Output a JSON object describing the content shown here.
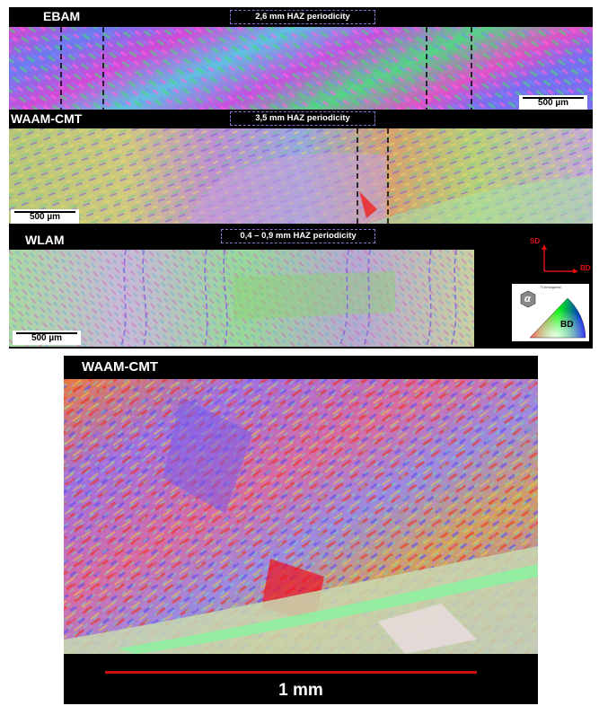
{
  "panels": {
    "ebam": {
      "title": "EBAM",
      "haz": "2,6 mm HAZ periodicity",
      "scale": "500 µm"
    },
    "waam": {
      "title": "WAAM-CMT",
      "haz": "3,5 mm HAZ periodicity",
      "scale": "500 µm"
    },
    "wlam": {
      "title": "WLAM",
      "haz": "0,4 – 0,9 mm HAZ periodicity",
      "scale": "500 µm"
    }
  },
  "axes": {
    "vertical": "SD",
    "horizontal": "BD"
  },
  "ipf_key": {
    "header": "Ti-hexagonal",
    "phase": "α",
    "label": "BD"
  },
  "zoom": {
    "title": "WAAM-CMT",
    "scale": "1 mm",
    "scale_color": "#d01010"
  }
}
